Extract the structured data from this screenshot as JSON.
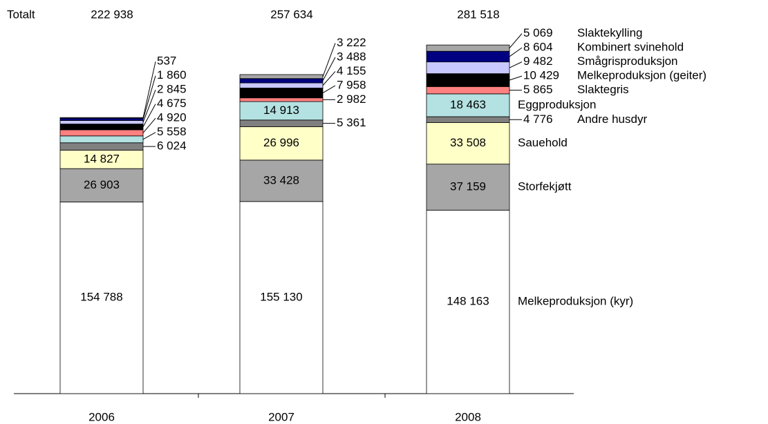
{
  "chart_data": {
    "type": "stacked_bar",
    "total_title": "Totalt",
    "categories": [
      "2006",
      "2007",
      "2008"
    ],
    "totals": [
      222938,
      257634,
      281518
    ],
    "totals_labels": [
      "222 938",
      "257 634",
      "281 518"
    ],
    "ylim": [
      0,
      300000
    ],
    "series": [
      {
        "name": "Melkeproduksjon (kyr)",
        "color": "#ffffff",
        "values": [
          154788,
          155130,
          148163
        ],
        "value_labels": [
          "154 788",
          "155 130",
          "148 163"
        ]
      },
      {
        "name": "Storfekjøtt",
        "color": "#a6a6a6",
        "values": [
          26903,
          33428,
          37159
        ],
        "value_labels": [
          "26 903",
          "33 428",
          "37 159"
        ]
      },
      {
        "name": "Sauehold",
        "color": "#ffffc8",
        "values": [
          14827,
          26996,
          33508
        ],
        "value_labels": [
          "14 827",
          "26 996",
          "33 508"
        ]
      },
      {
        "name": "Andre husdyr",
        "color": "#808080",
        "values": [
          6024,
          5361,
          4776
        ],
        "value_labels": [
          "6 024",
          "5 361",
          "4 776"
        ]
      },
      {
        "name": "Eggproduksjon",
        "color": "#b4e1e1",
        "values": [
          5558,
          14913,
          18463
        ],
        "value_labels": [
          "5 558",
          "14 913",
          "18 463"
        ]
      },
      {
        "name": "Slaktegris",
        "color": "#ff8080",
        "values": [
          4920,
          2982,
          5865
        ],
        "value_labels": [
          "4 920",
          "2 982",
          "5 865"
        ]
      },
      {
        "name": "Melkeproduksjon (geiter)",
        "color": "#000000",
        "values": [
          4675,
          7958,
          10429
        ],
        "value_labels": [
          "4 675",
          "7 958",
          "10 429"
        ]
      },
      {
        "name": "Smågrisproduksjon",
        "color": "#c8c8ff",
        "values": [
          2845,
          4155,
          9482
        ],
        "value_labels": [
          "2 845",
          "4 155",
          "9 482"
        ]
      },
      {
        "name": "Kombinert svinehold",
        "color": "#000080",
        "values": [
          1860,
          3488,
          8604
        ],
        "value_labels": [
          "1 860",
          "3 488",
          "8 604"
        ]
      },
      {
        "name": "Slaktekylling",
        "color": "#a6a6a6",
        "values": [
          537,
          3222,
          5069
        ],
        "value_labels": [
          "537",
          "3 222",
          "5 069"
        ]
      }
    ]
  }
}
